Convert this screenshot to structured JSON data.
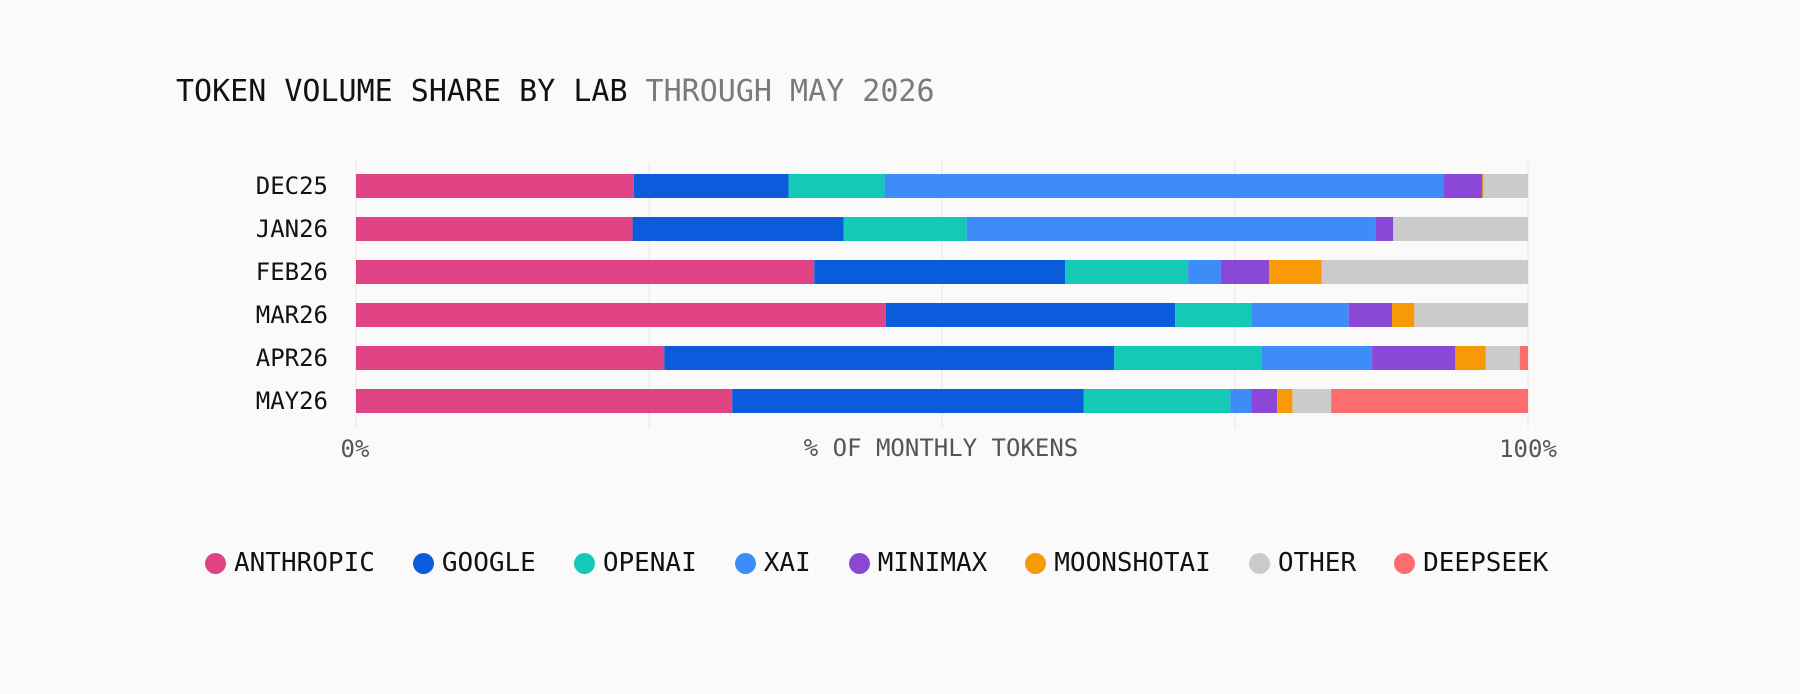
{
  "title": {
    "main": "TOKEN VOLUME SHARE BY LAB",
    "sub": "THROUGH MAY 2026"
  },
  "chart_data": {
    "type": "bar",
    "orientation": "horizontal",
    "stacked": true,
    "title": "TOKEN VOLUME SHARE BY LAB THROUGH MAY 2026",
    "xlabel": "% OF MONTHLY TOKENS",
    "ylabel": "",
    "xlim": [
      0,
      100
    ],
    "x_tick_labels": [
      "0%",
      "100%"
    ],
    "grid": true,
    "legend_position": "bottom",
    "categories": [
      "DEC25",
      "JAN26",
      "FEB26",
      "MAR26",
      "APR26",
      "MAY26"
    ],
    "series": [
      {
        "name": "ANTHROPIC",
        "color": "#df4384",
        "values": [
          23.7,
          23.6,
          39.1,
          45.2,
          26.3,
          32.1
        ]
      },
      {
        "name": "GOOGLE",
        "color": "#0b5cdd",
        "values": [
          13.2,
          18.0,
          21.4,
          24.7,
          38.4,
          30.0
        ]
      },
      {
        "name": "OPENAI",
        "color": "#14c9b5",
        "values": [
          8.2,
          10.5,
          10.5,
          6.5,
          12.6,
          12.5
        ]
      },
      {
        "name": "XAI",
        "color": "#3d8cf7",
        "values": [
          47.7,
          34.9,
          2.8,
          8.3,
          9.4,
          1.8
        ]
      },
      {
        "name": "MINIMAX",
        "color": "#8b47d6",
        "values": [
          3.3,
          1.5,
          4.1,
          3.7,
          7.1,
          2.2
        ]
      },
      {
        "name": "MOONSHOTAI",
        "color": "#f89a06",
        "values": [
          0.1,
          0.0,
          4.5,
          1.9,
          2.6,
          1.3
        ]
      },
      {
        "name": "OTHER",
        "color": "#cbcbcb",
        "values": [
          3.8,
          11.5,
          17.6,
          9.7,
          2.9,
          3.3
        ]
      },
      {
        "name": "DEEPSEEK",
        "color": "#fd6d6d",
        "values": [
          0.0,
          0.0,
          0.0,
          0.0,
          0.7,
          16.8
        ]
      }
    ]
  }
}
